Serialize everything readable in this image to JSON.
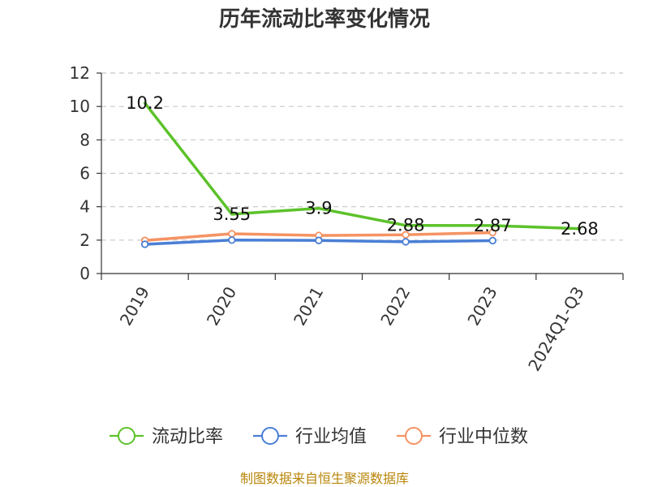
{
  "chart_data": {
    "type": "line",
    "title": "历年流动比率变化情况",
    "categories": [
      "2019",
      "2020",
      "2021",
      "2022",
      "2023",
      "2024Q1-Q3"
    ],
    "ylim": [
      0,
      12
    ],
    "yticks": [
      0,
      2,
      4,
      6,
      8,
      10,
      12
    ],
    "grid": true,
    "legend_position": "bottom",
    "series": [
      {
        "name": "流动比率",
        "color": "#5cc22a",
        "values": [
          10.2,
          3.55,
          3.9,
          2.88,
          2.87,
          2.68
        ],
        "labels": [
          "10.2",
          "3.55",
          "3.9",
          "2.88",
          "2.87",
          "2.68"
        ]
      },
      {
        "name": "行业均值",
        "color": "#4a7fd6",
        "values": [
          1.75,
          2.0,
          1.98,
          1.9,
          1.97,
          null
        ]
      },
      {
        "name": "行业中位数",
        "color": "#f59363",
        "values": [
          1.98,
          2.38,
          2.28,
          2.32,
          2.45,
          null
        ]
      }
    ]
  },
  "source": "制图数据来自恒生聚源数据库"
}
